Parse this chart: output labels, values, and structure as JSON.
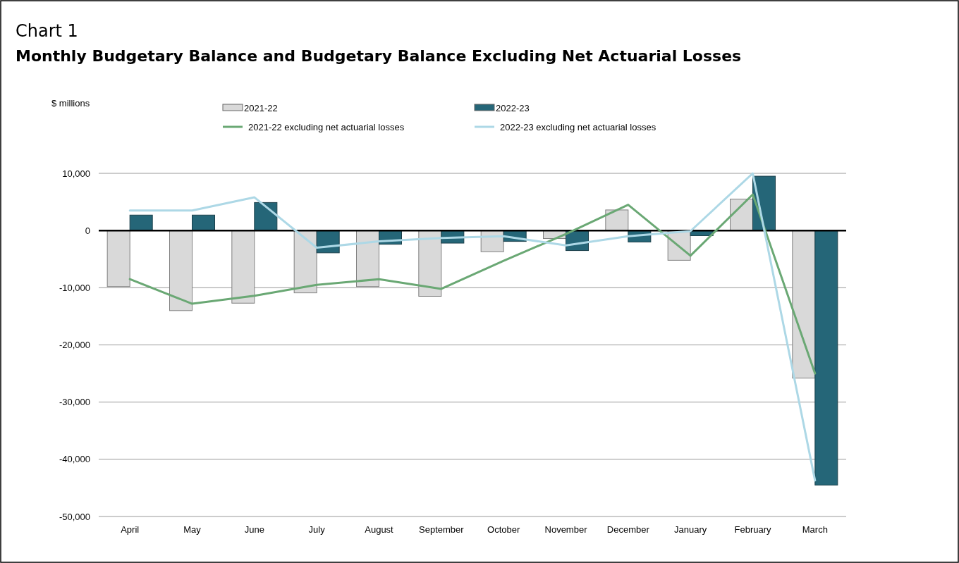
{
  "chart_data": {
    "type": "bar",
    "title": "Chart 1",
    "subtitle": "Monthly Budgetary Balance and Budgetary Balance Excluding Net Actuarial Losses",
    "annotations": [
      "$ millions"
    ],
    "categories": [
      "April",
      "May",
      "June",
      "July",
      "August",
      "September",
      "October",
      "November",
      "December",
      "January",
      "February",
      "March"
    ],
    "series": [
      {
        "name": "2021-22",
        "color": "#d9d9d9",
        "values": [
          -9800,
          -14000,
          -12700,
          -10900,
          -9800,
          -11500,
          -3700,
          -1400,
          3600,
          -5200,
          5500,
          -25800
        ]
      },
      {
        "name": "2022-23",
        "color": "#256678",
        "values": [
          2700,
          2700,
          4900,
          -3900,
          -2400,
          -2200,
          -1900,
          -3500,
          -2000,
          -900,
          9500,
          -44500
        ]
      },
      {
        "name": "2021-22 excluding net actuarial losses",
        "type": "line",
        "color": "#6aa874",
        "values": [
          -8500,
          -12800,
          -11400,
          -9500,
          -8500,
          -10200,
          -5300,
          -600,
          4500,
          -4400,
          6300,
          -25000
        ]
      },
      {
        "name": "2022-23 excluding net actuarial losses",
        "type": "line",
        "color": "#add8e6",
        "values": [
          3500,
          3500,
          5800,
          -3000,
          -1900,
          -1300,
          -1000,
          -2600,
          -1000,
          -100,
          10000,
          -43700
        ]
      }
    ],
    "ylim": [
      -50000,
      10000
    ],
    "yticks": [
      {
        "value": -50000,
        "label": "-50,000"
      },
      {
        "value": -40000,
        "label": "-40,000"
      },
      {
        "value": -30000,
        "label": "-30,000"
      },
      {
        "value": -20000,
        "label": "-20,000"
      },
      {
        "value": -10000,
        "label": "-10,000"
      },
      {
        "value": 0,
        "label": "0"
      },
      {
        "value": 10000,
        "label": "10,000"
      }
    ],
    "grid": "y",
    "legend": "top",
    "marker": "none",
    "line_style": "solid"
  }
}
